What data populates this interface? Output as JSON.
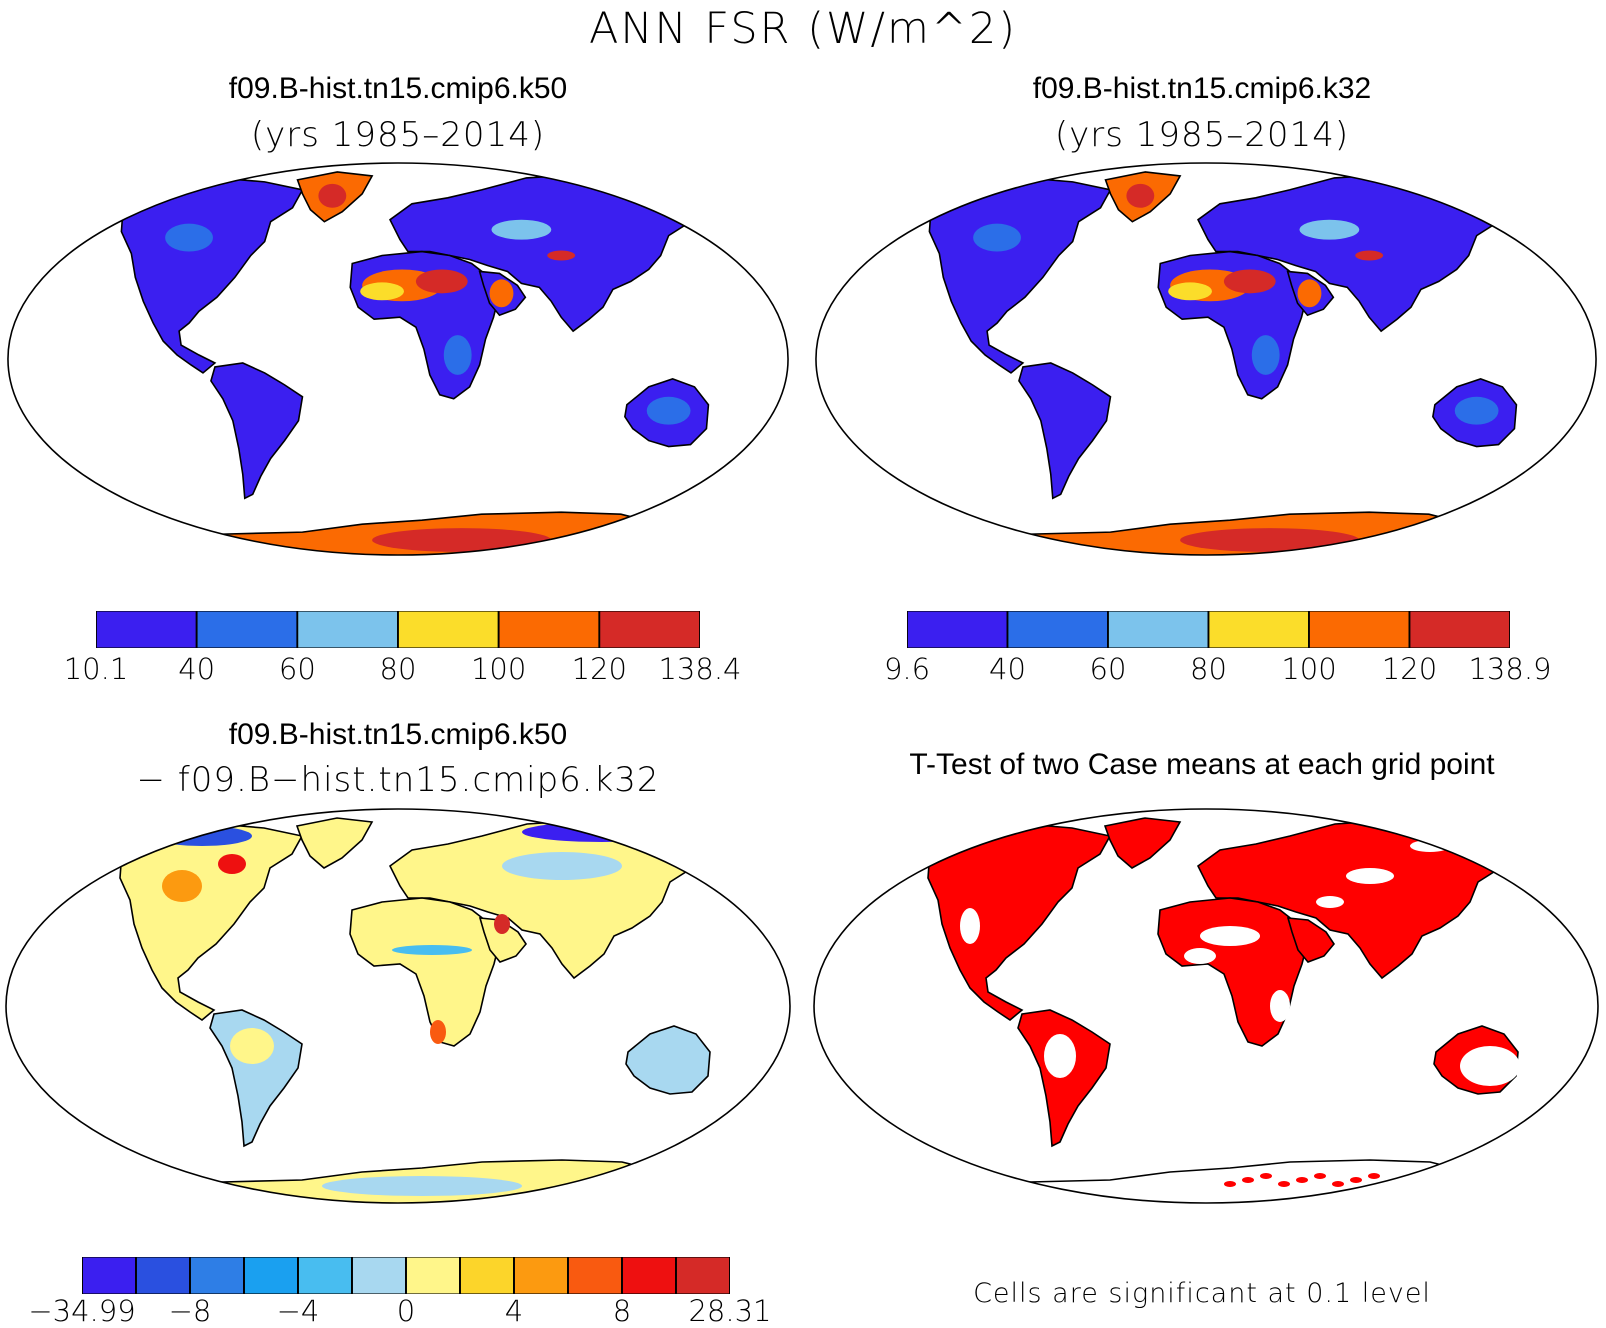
{
  "main_title": "ANN FSR (W/m^2)",
  "panels": [
    {
      "id": "case1",
      "title": "f09.B-hist.tn15.cmip6.k50",
      "subtitle": "(yrs 1985–2014)",
      "colorbar": {
        "colors": [
          "#3b1ff0",
          "#2b6ee8",
          "#7cc3ec",
          "#fbdd2a",
          "#fb6a02",
          "#d52a27"
        ],
        "labels": [
          "10.1",
          "40",
          "60",
          "80",
          "100",
          "120",
          "138.4"
        ]
      }
    },
    {
      "id": "case2",
      "title": "f09.B-hist.tn15.cmip6.k32",
      "subtitle": "(yrs 1985–2014)",
      "colorbar": {
        "colors": [
          "#3b1ff0",
          "#2b6ee8",
          "#7cc3ec",
          "#fbdd2a",
          "#fb6a02",
          "#d52a27"
        ],
        "labels": [
          "9.6",
          "40",
          "60",
          "80",
          "100",
          "120",
          "138.9"
        ]
      }
    },
    {
      "id": "difference",
      "title": "f09.B-hist.tn15.cmip6.k50",
      "subtitle": "− f09.B−hist.tn15.cmip6.k32",
      "colorbar": {
        "colors": [
          "#3b1ff0",
          "#2a50e0",
          "#2e7ee6",
          "#1aa0f0",
          "#48bdf0",
          "#a8d8f0",
          "#fff68a",
          "#fcd52a",
          "#fc9a10",
          "#f95a10",
          "#ee1010",
          "#d52a27"
        ],
        "labels": [
          "−34.99",
          "−8",
          "−4",
          "0",
          "4",
          "8",
          "28.31"
        ]
      }
    },
    {
      "id": "ttest",
      "title": "T-Test of two Case means at each grid point",
      "note": "Cells are significant at 0.1 level",
      "significant_color": "#ff0000"
    }
  ]
}
